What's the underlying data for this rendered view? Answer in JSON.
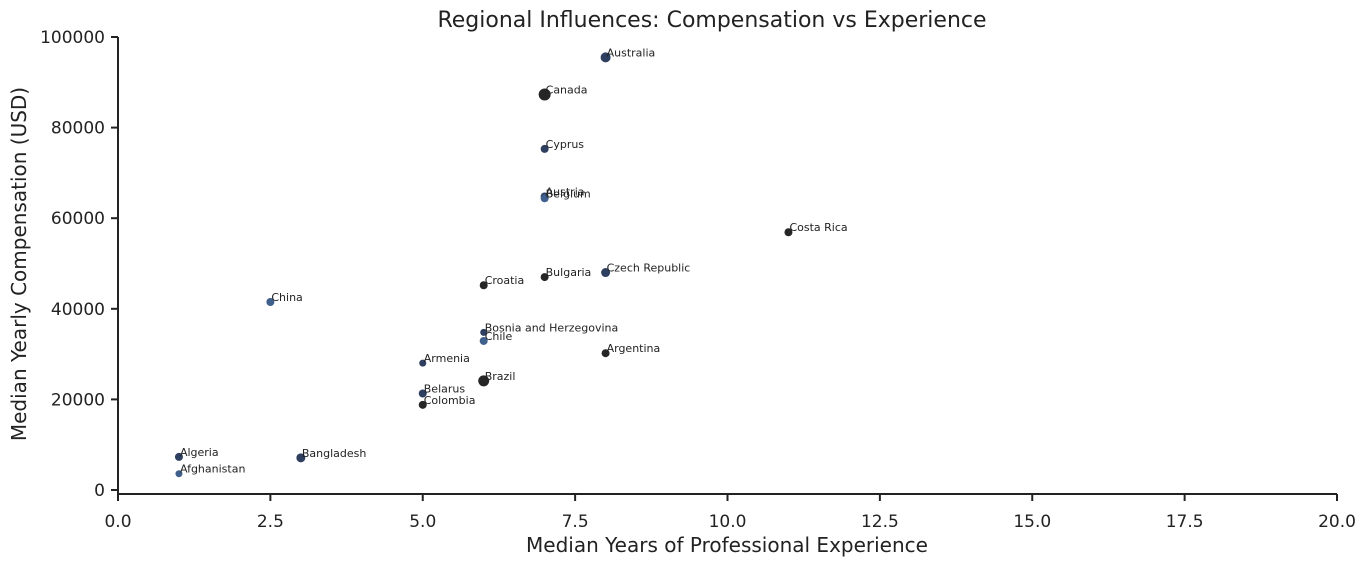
{
  "chart_data": {
    "type": "scatter",
    "title": "Regional Influences: Compensation vs Experience",
    "xlabel": "Median Years of Professional Experience",
    "ylabel": "Median Yearly Compensation (USD)",
    "xlim": [
      0,
      20
    ],
    "ylim": [
      0,
      100000
    ],
    "xticks": [
      0,
      2.5,
      5,
      7.5,
      10,
      12.5,
      15,
      17.5,
      20
    ],
    "xtick_labels": [
      "0.0",
      "2.5",
      "5.0",
      "7.5",
      "10.0",
      "12.5",
      "15.0",
      "17.5",
      "20.0"
    ],
    "yticks": [
      0,
      20000,
      40000,
      60000,
      80000,
      100000
    ],
    "ytick_labels": [
      "0",
      "20000",
      "40000",
      "60000",
      "80000",
      "100000"
    ],
    "grid": false,
    "colors": {
      "dark": "#262626",
      "navy": "#2e3f5f",
      "blue": "#3f5f8c"
    },
    "points": [
      {
        "label": "Australia",
        "x": 8,
        "y": 95500,
        "size": 10,
        "color": "navy"
      },
      {
        "label": "Canada",
        "x": 7,
        "y": 87300,
        "size": 12,
        "color": "dark"
      },
      {
        "label": "Cyprus",
        "x": 7,
        "y": 75300,
        "size": 8,
        "color": "navy"
      },
      {
        "label": "Austria",
        "x": 7,
        "y": 64800,
        "size": 8,
        "color": "navy"
      },
      {
        "label": "Belgium",
        "x": 7,
        "y": 64400,
        "size": 8,
        "color": "blue"
      },
      {
        "label": "Costa Rica",
        "x": 11,
        "y": 56900,
        "size": 8,
        "color": "dark"
      },
      {
        "label": "Czech Republic",
        "x": 8,
        "y": 48000,
        "size": 9,
        "color": "navy"
      },
      {
        "label": "Bulgaria",
        "x": 7,
        "y": 47000,
        "size": 8,
        "color": "dark"
      },
      {
        "label": "Croatia",
        "x": 6,
        "y": 45200,
        "size": 8,
        "color": "dark"
      },
      {
        "label": "China",
        "x": 2.5,
        "y": 41500,
        "size": 8,
        "color": "blue"
      },
      {
        "label": "Bosnia and Herzegovina",
        "x": 6,
        "y": 34800,
        "size": 7,
        "color": "navy"
      },
      {
        "label": "Chile",
        "x": 6,
        "y": 32900,
        "size": 8,
        "color": "blue"
      },
      {
        "label": "Argentina",
        "x": 8,
        "y": 30200,
        "size": 8,
        "color": "dark"
      },
      {
        "label": "Armenia",
        "x": 5,
        "y": 28000,
        "size": 7,
        "color": "navy"
      },
      {
        "label": "Brazil",
        "x": 6,
        "y": 24100,
        "size": 11,
        "color": "dark"
      },
      {
        "label": "Belarus",
        "x": 5,
        "y": 21300,
        "size": 8,
        "color": "navy"
      },
      {
        "label": "Colombia",
        "x": 5,
        "y": 18800,
        "size": 8,
        "color": "dark"
      },
      {
        "label": "Algeria",
        "x": 1,
        "y": 7300,
        "size": 8,
        "color": "navy"
      },
      {
        "label": "Bangladesh",
        "x": 3,
        "y": 7100,
        "size": 9,
        "color": "navy"
      },
      {
        "label": "Afghanistan",
        "x": 1,
        "y": 3600,
        "size": 7,
        "color": "blue"
      }
    ]
  }
}
